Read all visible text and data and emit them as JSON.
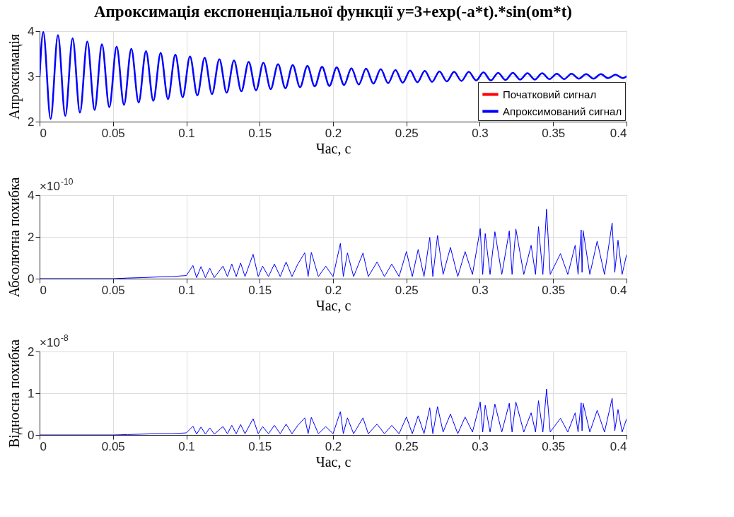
{
  "chart_data": [
    {
      "type": "line",
      "title": "Апроксимація експоненціальної функції y=3+exp(-a*t).*sin(om*t)",
      "xlabel": "Час, с",
      "ylabel": "Апроксимація",
      "x": [
        0,
        0.0025,
        0.0075,
        0.0125,
        0.0175,
        0.0225,
        0.0275,
        0.0325,
        0.0375,
        0.0425,
        0.0475,
        0.0525,
        0.0575,
        0.0625,
        0.0675,
        0.0725,
        0.0775,
        0.0825,
        0.0875,
        0.0925,
        0.0975,
        0.1025,
        0.1075,
        0.1125,
        0.1175,
        0.1225,
        0.1275,
        0.1325,
        0.1375,
        0.1425,
        0.1475,
        0.1525,
        0.1575,
        0.1625,
        0.1675,
        0.1725,
        0.1775,
        0.1825,
        0.1875,
        0.1925,
        0.1975,
        0.2025,
        0.2075,
        0.2125,
        0.2175,
        0.2225,
        0.2275,
        0.2325,
        0.2375,
        0.2425,
        0.2475,
        0.2525,
        0.2575,
        0.2625,
        0.2675,
        0.2725,
        0.2775,
        0.2825,
        0.2875,
        0.2925,
        0.2975,
        0.3025,
        0.3075,
        0.3125,
        0.3175,
        0.3225,
        0.3275,
        0.3325,
        0.3375,
        0.3425,
        0.3475,
        0.3525,
        0.3575,
        0.3625,
        0.3675,
        0.3725,
        0.3775,
        0.3825,
        0.3875,
        0.3925,
        0.3975,
        0.4
      ],
      "series": [
        {
          "name": "Початковий сигнал",
          "color": "#ff0000",
          "values": [
            null,
            null,
            null,
            null,
            null,
            null,
            null,
            null,
            null,
            null,
            null,
            null,
            null,
            null,
            null,
            null,
            null,
            null,
            null,
            null,
            null,
            null,
            null,
            null,
            null,
            null,
            null,
            null,
            null,
            null,
            null,
            null,
            null,
            null,
            null,
            null,
            null,
            null,
            null,
            null,
            null,
            null,
            null,
            null,
            null,
            null,
            null,
            null,
            null,
            null,
            null,
            null,
            null,
            null,
            null,
            null,
            null,
            null,
            null,
            null,
            null,
            null,
            null,
            null,
            null,
            null,
            null,
            null,
            null,
            null,
            null,
            null,
            null,
            null,
            null,
            null,
            null,
            null,
            null,
            null,
            null,
            null
          ]
        },
        {
          "name": "Апроксимований сигнал",
          "color": "#0000ff",
          "values": [
            3,
            3.98,
            2.06,
            3.91,
            2.13,
            3.84,
            2.2,
            3.77,
            2.26,
            3.71,
            2.32,
            3.66,
            2.37,
            3.61,
            2.42,
            3.56,
            2.46,
            3.52,
            2.5,
            3.48,
            2.54,
            3.44,
            2.58,
            3.41,
            2.61,
            3.38,
            2.64,
            3.35,
            2.67,
            3.32,
            2.69,
            3.3,
            2.72,
            3.27,
            2.74,
            3.25,
            2.76,
            3.23,
            2.78,
            3.21,
            2.79,
            3.2,
            2.81,
            3.18,
            2.82,
            3.17,
            2.84,
            3.16,
            2.85,
            3.14,
            2.86,
            3.13,
            2.87,
            3.12,
            2.88,
            3.11,
            2.89,
            3.1,
            2.9,
            3.1,
            2.91,
            3.09,
            2.91,
            3.08,
            2.92,
            3.08,
            2.93,
            3.07,
            2.93,
            3.07,
            2.94,
            3.06,
            2.94,
            3.06,
            2.95,
            3.05,
            2.95,
            3.05,
            2.96,
            3.04,
            2.96,
            3
          ]
        }
      ],
      "xlim": [
        0,
        0.4
      ],
      "xticks": [
        0,
        0.05,
        0.1,
        0.15,
        0.2,
        0.25,
        0.3,
        0.35,
        0.4
      ],
      "ylim": [
        2,
        4
      ],
      "yticks": [
        2,
        3,
        4
      ],
      "grid": true,
      "legend": "bottom right",
      "line_style": "solid"
    },
    {
      "type": "line",
      "xlabel": "Час, с",
      "ylabel": "Абсолютна похибка",
      "annotations": [
        "×10$^{-10}$"
      ],
      "x": [
        0,
        0.05,
        0.06,
        0.07,
        0.08,
        0.09,
        0.1,
        0.1045,
        0.107,
        0.11,
        0.113,
        0.116,
        0.119,
        0.125,
        0.128,
        0.131,
        0.134,
        0.137,
        0.14,
        0.1455,
        0.149,
        0.152,
        0.156,
        0.16,
        0.164,
        0.168,
        0.172,
        0.176,
        0.1807,
        0.183,
        0.1852,
        0.19,
        0.195,
        0.2,
        0.205,
        0.207,
        0.2098,
        0.214,
        0.2204,
        0.224,
        0.23,
        0.235,
        0.24,
        0.245,
        0.25,
        0.254,
        0.258,
        0.262,
        0.2659,
        0.268,
        0.2712,
        0.275,
        0.28,
        0.285,
        0.29,
        0.295,
        0.3003,
        0.302,
        0.3037,
        0.307,
        0.3103,
        0.315,
        0.3201,
        0.322,
        0.3246,
        0.33,
        0.335,
        0.338,
        0.34,
        0.343,
        0.3455,
        0.348,
        0.355,
        0.36,
        0.365,
        0.367,
        0.3691,
        0.3697,
        0.3704,
        0.375,
        0.38,
        0.385,
        0.3902,
        0.392,
        0.3942,
        0.397,
        0.4
      ],
      "series": [
        {
          "color": "#0000ff",
          "values": [
            0,
            0,
            0.03,
            0.05,
            0.08,
            0.1,
            0.15,
            0.63,
            0.05,
            0.58,
            0.05,
            0.5,
            0.05,
            0.6,
            0.1,
            0.7,
            0.1,
            0.75,
            0.1,
            1.17,
            0.1,
            0.6,
            0.1,
            0.7,
            0.1,
            0.8,
            0.1,
            0.7,
            1.24,
            0.1,
            1.26,
            0.1,
            0.6,
            0.1,
            1.69,
            0.1,
            1.23,
            0.1,
            1.23,
            0.1,
            0.8,
            0.1,
            0.7,
            0.1,
            1.3,
            0.1,
            1.4,
            0.1,
            1.98,
            0.1,
            2.07,
            0.2,
            1.5,
            0.1,
            1.3,
            0.2,
            2.4,
            0.2,
            2.16,
            0.2,
            2.25,
            0.2,
            2.29,
            0.2,
            2.38,
            0.2,
            1.6,
            0.2,
            2.49,
            0.2,
            3.33,
            0.2,
            1.2,
            0.2,
            1.6,
            0.2,
            2.34,
            0.3,
            2.31,
            0.2,
            1.8,
            0.2,
            2.67,
            0.3,
            1.84,
            0.2,
            1.14
          ]
        }
      ],
      "xlim": [
        0,
        0.4
      ],
      "xticks": [
        0,
        0.05,
        0.1,
        0.15,
        0.2,
        0.25,
        0.3,
        0.35,
        0.4
      ],
      "ylim": [
        0,
        4
      ],
      "yticks": [
        0,
        2,
        4
      ],
      "grid": true,
      "line_style": "solid"
    },
    {
      "type": "line",
      "xlabel": "Час, с",
      "ylabel": "Відносна похибка",
      "annotations": [
        "×10$^{-8}$"
      ],
      "x": [
        0,
        0.05,
        0.06,
        0.07,
        0.08,
        0.09,
        0.1,
        0.1045,
        0.107,
        0.11,
        0.113,
        0.116,
        0.119,
        0.125,
        0.128,
        0.131,
        0.134,
        0.137,
        0.14,
        0.1455,
        0.149,
        0.152,
        0.156,
        0.16,
        0.164,
        0.168,
        0.172,
        0.176,
        0.1807,
        0.183,
        0.1852,
        0.19,
        0.195,
        0.2,
        0.205,
        0.207,
        0.2098,
        0.214,
        0.2204,
        0.224,
        0.23,
        0.235,
        0.24,
        0.245,
        0.25,
        0.254,
        0.258,
        0.262,
        0.2659,
        0.268,
        0.2712,
        0.275,
        0.28,
        0.285,
        0.29,
        0.295,
        0.3003,
        0.302,
        0.3037,
        0.307,
        0.3103,
        0.315,
        0.3201,
        0.322,
        0.3246,
        0.33,
        0.335,
        0.338,
        0.34,
        0.343,
        0.3455,
        0.348,
        0.355,
        0.36,
        0.365,
        0.367,
        0.3691,
        0.3697,
        0.3704,
        0.375,
        0.38,
        0.385,
        0.3902,
        0.392,
        0.3942,
        0.397,
        0.4
      ],
      "series": [
        {
          "color": "#0000ff",
          "values": [
            0,
            0,
            0.01,
            0.02,
            0.03,
            0.03,
            0.05,
            0.21,
            0.02,
            0.19,
            0.02,
            0.17,
            0.02,
            0.2,
            0.03,
            0.23,
            0.03,
            0.25,
            0.03,
            0.39,
            0.03,
            0.2,
            0.03,
            0.23,
            0.03,
            0.26,
            0.03,
            0.23,
            0.41,
            0.03,
            0.42,
            0.03,
            0.2,
            0.03,
            0.56,
            0.03,
            0.41,
            0.03,
            0.41,
            0.03,
            0.26,
            0.03,
            0.23,
            0.03,
            0.43,
            0.03,
            0.46,
            0.03,
            0.65,
            0.03,
            0.68,
            0.07,
            0.5,
            0.03,
            0.43,
            0.07,
            0.79,
            0.07,
            0.71,
            0.07,
            0.74,
            0.07,
            0.76,
            0.07,
            0.79,
            0.07,
            0.53,
            0.07,
            0.82,
            0.07,
            1.1,
            0.07,
            0.4,
            0.07,
            0.53,
            0.07,
            0.77,
            0.1,
            0.76,
            0.07,
            0.59,
            0.07,
            0.88,
            0.1,
            0.61,
            0.07,
            0.38
          ]
        }
      ],
      "xlim": [
        0,
        0.4
      ],
      "xticks": [
        0,
        0.05,
        0.1,
        0.15,
        0.2,
        0.25,
        0.3,
        0.35,
        0.4
      ],
      "ylim": [
        0,
        2
      ],
      "yticks": [
        0,
        1,
        2
      ],
      "grid": true,
      "line_style": "solid"
    }
  ]
}
